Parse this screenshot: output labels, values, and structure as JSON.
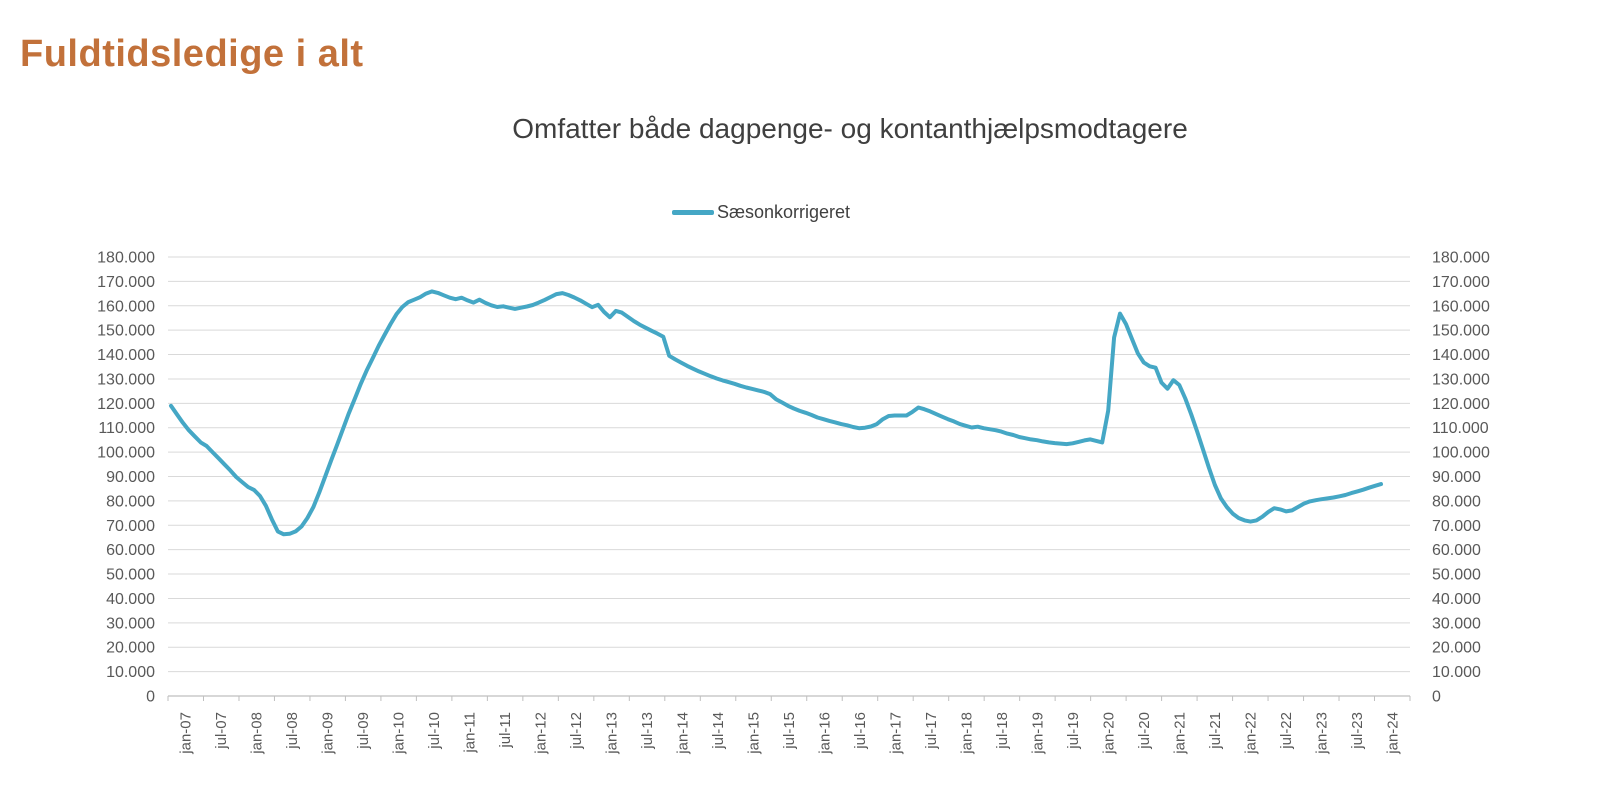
{
  "page": {
    "title": "Fuldtidsledige i alt"
  },
  "colors": {
    "accent_orange": "#C2713A",
    "line": "#45A7C5",
    "title_text": "#3F3F3F",
    "legend_text": "#404040",
    "axis_text": "#595959",
    "gridline": "#D9D9D9",
    "axis_line": "#BFBFBF"
  },
  "chart_data": {
    "type": "line",
    "title": "Omfatter både dagpenge- og kontanthjælpsmodtagere",
    "legend_position": "top-center",
    "grid": true,
    "frequency": "monthly",
    "x_start": "jan-07",
    "x_end": "jan-24",
    "ylim": [
      0,
      180000
    ],
    "y_tick_step": 10000,
    "y_tick_labels": [
      "0",
      "10.000",
      "20.000",
      "30.000",
      "40.000",
      "50.000",
      "60.000",
      "70.000",
      "80.000",
      "90.000",
      "100.000",
      "110.000",
      "120.000",
      "130.000",
      "140.000",
      "150.000",
      "160.000",
      "170.000",
      "180.000"
    ],
    "x_tick_labels": [
      "jan-07",
      "jul-07",
      "jan-08",
      "jul-08",
      "jan-09",
      "jul-09",
      "jan-10",
      "jul-10",
      "jan-11",
      "jul-11",
      "jan-12",
      "jul-12",
      "jan-13",
      "jul-13",
      "jan-14",
      "jul-14",
      "jan-15",
      "jul-15",
      "jan-16",
      "jul-16",
      "jan-17",
      "jul-17",
      "jan-18",
      "jul-18",
      "jan-19",
      "jul-19",
      "jan-20",
      "jul-20",
      "jan-21",
      "jul-21",
      "jan-22",
      "jul-22",
      "jan-23",
      "jul-23",
      "jan-24"
    ],
    "series": [
      {
        "name": "Sæsonkorrigeret",
        "color": "#45A7C5",
        "values": [
          119000,
          115500,
          112000,
          109000,
          106500,
          104000,
          102500,
          100000,
          97500,
          95000,
          92500,
          89800,
          87700,
          85700,
          84500,
          82000,
          78000,
          72500,
          67500,
          66300,
          66500,
          67500,
          69500,
          73000,
          77500,
          83500,
          90000,
          96500,
          103000,
          109500,
          116000,
          122000,
          128000,
          133500,
          138500,
          143500,
          148000,
          152500,
          156500,
          159500,
          161500,
          162500,
          163500,
          165000,
          165900,
          165300,
          164300,
          163300,
          162700,
          163300,
          162200,
          161300,
          162500,
          161200,
          160200,
          159500,
          159800,
          159200,
          158700,
          159200,
          159700,
          160300,
          161300,
          162400,
          163600,
          164800,
          165200,
          164400,
          163400,
          162200,
          160800,
          159400,
          160400,
          157500,
          155300,
          157900,
          157200,
          155500,
          153800,
          152300,
          151000,
          149800,
          148600,
          147300,
          139500,
          138000,
          136700,
          135400,
          134200,
          133100,
          132100,
          131100,
          130200,
          129400,
          128700,
          128000,
          127200,
          126500,
          125900,
          125300,
          124700,
          123800,
          121700,
          120400,
          119000,
          117900,
          116900,
          116100,
          115200,
          114200,
          113500,
          112800,
          112200,
          111500,
          111000,
          110300,
          109800,
          110000,
          110500,
          111500,
          113500,
          114800,
          115000,
          115000,
          115000,
          116500,
          118300,
          117600,
          116700,
          115600,
          114500,
          113500,
          112600,
          111500,
          110800,
          110100,
          110400,
          109800,
          109400,
          109000,
          108400,
          107600,
          107000,
          106200,
          105700,
          105200,
          104900,
          104400,
          104000,
          103700,
          103500,
          103300,
          103600,
          104200,
          104800,
          105200,
          104600,
          104000,
          117000,
          147000,
          156800,
          152500,
          146500,
          140500,
          136800,
          135200,
          134600,
          128500,
          126000,
          129500,
          127500,
          122000,
          115500,
          108500,
          101000,
          93500,
          86500,
          81000,
          77500,
          74800,
          73000,
          72000,
          71500,
          72000,
          73500,
          75500,
          77000,
          76500,
          75700,
          76100,
          77500,
          78900,
          79800,
          80300,
          80700,
          81000,
          81400,
          81900,
          82400,
          83200,
          83900,
          84600,
          85400,
          86200,
          86900
        ]
      }
    ]
  }
}
